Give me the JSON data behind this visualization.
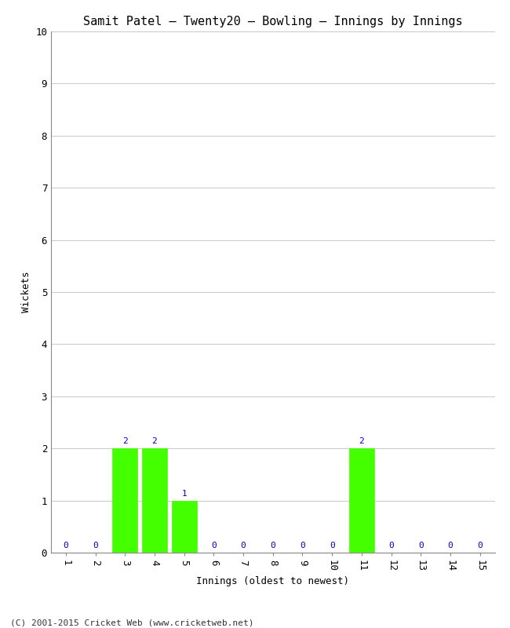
{
  "title": "Samit Patel – Twenty20 – Bowling – Innings by Innings",
  "xlabel": "Innings (oldest to newest)",
  "ylabel": "Wickets",
  "innings": [
    1,
    2,
    3,
    4,
    5,
    6,
    7,
    8,
    9,
    10,
    11,
    12,
    13,
    14,
    15
  ],
  "wickets": [
    0,
    0,
    2,
    2,
    1,
    0,
    0,
    0,
    0,
    0,
    2,
    0,
    0,
    0,
    0
  ],
  "bar_color": "#44ff00",
  "bar_edge_color": "#44ff00",
  "ylim": [
    0,
    10
  ],
  "yticks": [
    0,
    1,
    2,
    3,
    4,
    5,
    6,
    7,
    8,
    9,
    10
  ],
  "background_color": "#ffffff",
  "grid_color": "#cccccc",
  "label_color": "#0000cc",
  "title_fontsize": 11,
  "axis_fontsize": 9,
  "tick_fontsize": 9,
  "label_fontsize": 8,
  "footer": "(C) 2001-2015 Cricket Web (www.cricketweb.net)"
}
